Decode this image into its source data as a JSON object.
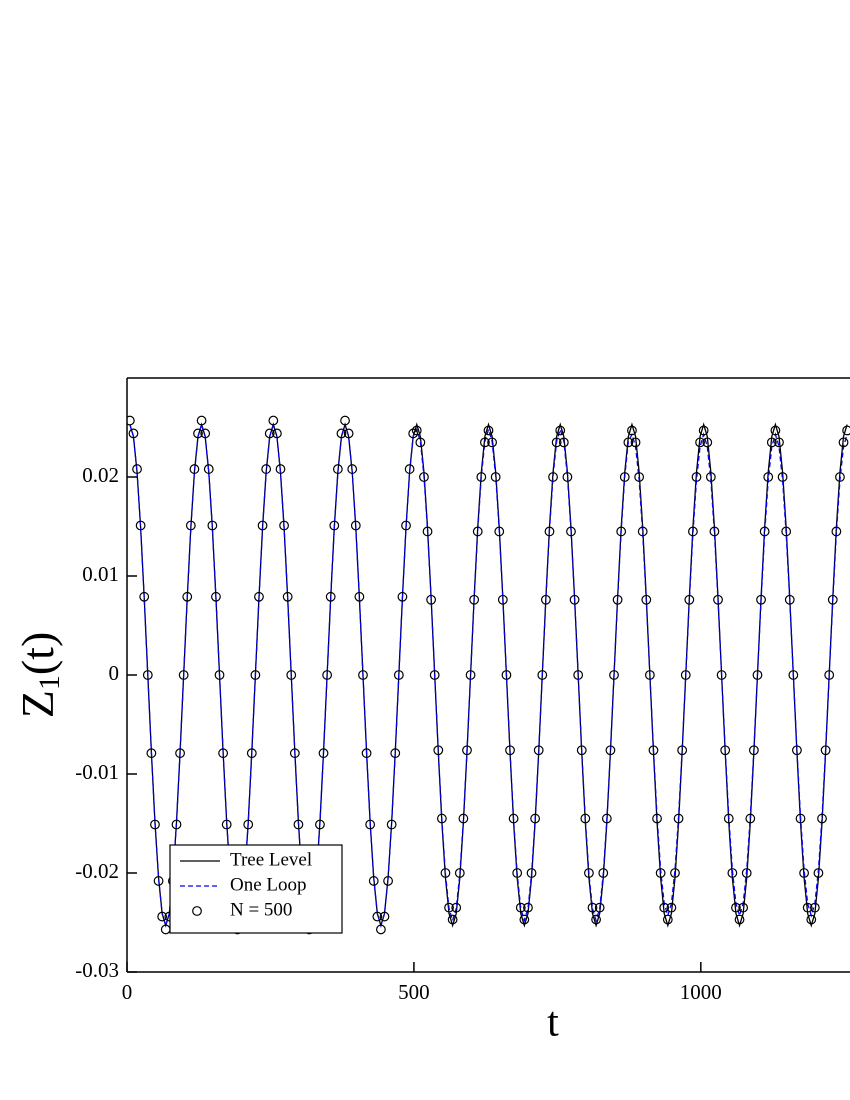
{
  "chart_data": {
    "type": "line",
    "xlabel": "t",
    "ylabel": [
      "Z",
      "1",
      "(t)"
    ],
    "xlim": [
      0,
      1260
    ],
    "ylim": [
      -0.03,
      0.03
    ],
    "xticks": [
      0,
      500,
      1000
    ],
    "yticks": [
      -0.03,
      -0.02,
      -0.01,
      0,
      0.01,
      0.02
    ],
    "legend": "lower left",
    "x": [
      5,
      11.25,
      17.5,
      23.75,
      30,
      36.25,
      42.5,
      48.75,
      55,
      61.25,
      67.5,
      73.75,
      80,
      86.25,
      92.5,
      98.75,
      105,
      111.25,
      117.5,
      123.75,
      130,
      136.25,
      142.5,
      148.75,
      155,
      161.25,
      167.5,
      173.75,
      180,
      186.25,
      192.5,
      198.75,
      205,
      211.25,
      217.5,
      223.75,
      230,
      236.25,
      242.5,
      248.75,
      255,
      261.25,
      267.5,
      273.75,
      280,
      286.25,
      292.5,
      298.75,
      305,
      311.25,
      317.5,
      323.75,
      330,
      336.25,
      342.5,
      348.75,
      355,
      361.25,
      367.5,
      373.75,
      380,
      386.25,
      392.5,
      398.75,
      405,
      411.25,
      417.5,
      423.75,
      430,
      436.25,
      442.5,
      448.75,
      455,
      461.25,
      467.5,
      473.75,
      480,
      486.25,
      492.5,
      498.75,
      505,
      511.25,
      517.5,
      523.75,
      530,
      536.25,
      542.5,
      548.75,
      555,
      561.25,
      567.5,
      573.75,
      580,
      586.25,
      592.5,
      598.75,
      605,
      611.25,
      617.5,
      623.75,
      630,
      636.25,
      642.5,
      648.75,
      655,
      661.25,
      667.5,
      673.75,
      680,
      686.25,
      692.5,
      698.75,
      705,
      711.25,
      717.5,
      723.75,
      730,
      736.25,
      742.5,
      748.75,
      755,
      761.25,
      767.5,
      773.75,
      780,
      786.25,
      792.5,
      798.75,
      805,
      811.25,
      817.5,
      823.75,
      830,
      836.25,
      842.5,
      848.75,
      855,
      861.25,
      867.5,
      873.75,
      880,
      886.25,
      892.5,
      898.75,
      905,
      911.25,
      917.5,
      923.75,
      930,
      936.25,
      942.5,
      948.75,
      955,
      961.25,
      967.5,
      973.75,
      980,
      986.25,
      992.5,
      998.75,
      1005,
      1011.25,
      1017.5,
      1023.75,
      1030,
      1036.25,
      1042.5,
      1048.75,
      1055,
      1061.25,
      1067.5,
      1073.75,
      1080,
      1086.25,
      1092.5,
      1098.75,
      1105,
      1111.25,
      1117.5,
      1123.75,
      1130,
      1136.25,
      1142.5,
      1148.75,
      1155,
      1161.25,
      1167.5,
      1173.75,
      1180,
      1186.25,
      1192.5,
      1198.75,
      1205,
      1211.25,
      1217.5,
      1223.75,
      1230,
      1236.25,
      1242.5,
      1248.75,
      1255
    ],
    "series": [
      {
        "name": "Tree Level",
        "color": "#000000",
        "mode": "line",
        "dashed": false,
        "values": [
          0.0253,
          0.0241,
          0.0205,
          0.0149,
          0.0078,
          0,
          -0.0078,
          -0.0149,
          -0.0205,
          -0.0241,
          -0.0253,
          -0.0241,
          -0.0205,
          -0.0149,
          -0.0078,
          0,
          0.0078,
          0.0149,
          0.0205,
          0.0241,
          0.0253,
          0.0241,
          0.0205,
          0.0149,
          0.0078,
          0,
          -0.0078,
          -0.0149,
          -0.0205,
          -0.0241,
          -0.0253,
          -0.0241,
          -0.0205,
          -0.0149,
          -0.0078,
          0,
          0.0078,
          0.0149,
          0.0205,
          0.0241,
          0.0253,
          0.0241,
          0.0205,
          0.0149,
          0.0078,
          0,
          -0.0078,
          -0.0149,
          -0.0205,
          -0.0241,
          -0.0253,
          -0.0241,
          -0.0205,
          -0.0149,
          -0.0078,
          0,
          0.0078,
          0.0149,
          0.0205,
          0.0241,
          0.0253,
          0.0241,
          0.0205,
          0.0149,
          0.0078,
          0,
          -0.0078,
          -0.0149,
          -0.0205,
          -0.0241,
          -0.0253,
          -0.0241,
          -0.0205,
          -0.0149,
          -0.0078,
          0,
          0.0078,
          0.0149,
          0.0205,
          0.0241,
          0.0253,
          0.0241,
          0.0205,
          0.0149,
          0.0078,
          0,
          -0.0078,
          -0.0149,
          -0.0205,
          -0.0241,
          -0.0253,
          -0.0241,
          -0.0205,
          -0.0149,
          -0.0078,
          0,
          0.0078,
          0.0149,
          0.0205,
          0.0241,
          0.0253,
          0.0241,
          0.0205,
          0.0149,
          0.0078,
          0,
          -0.0078,
          -0.0149,
          -0.0205,
          -0.0241,
          -0.0253,
          -0.0241,
          -0.0205,
          -0.0149,
          -0.0078,
          0,
          0.0078,
          0.0149,
          0.0205,
          0.0241,
          0.0253,
          0.0241,
          0.0205,
          0.0149,
          0.0078,
          0,
          -0.0078,
          -0.0149,
          -0.0205,
          -0.0241,
          -0.0253,
          -0.0241,
          -0.0205,
          -0.0149,
          -0.0078,
          0,
          0.0078,
          0.0149,
          0.0205,
          0.0241,
          0.0253,
          0.0241,
          0.0205,
          0.0149,
          0.0078,
          0,
          -0.0078,
          -0.0149,
          -0.0205,
          -0.0241,
          -0.0253,
          -0.0241,
          -0.0205,
          -0.0149,
          -0.0078,
          0,
          0.0078,
          0.0149,
          0.0205,
          0.0241,
          0.0253,
          0.0241,
          0.0205,
          0.0149,
          0.0078,
          0,
          -0.0078,
          -0.0149,
          -0.0205,
          -0.0241,
          -0.0253,
          -0.0241,
          -0.0205,
          -0.0149,
          -0.0078,
          0,
          0.0078,
          0.0149,
          0.0205,
          0.0241,
          0.0253,
          0.0241,
          0.0205,
          0.0149,
          0.0078,
          0,
          -0.0078,
          -0.0149,
          -0.0205,
          -0.0241,
          -0.0253,
          -0.0241,
          -0.0205,
          -0.0149,
          -0.0078,
          0,
          0.0078,
          0.0149,
          0.0205,
          0.0241,
          0.0253
        ]
      },
      {
        "name": "One Loop",
        "color": "#0000ff",
        "mode": "line",
        "dashed": true,
        "values": [
          0.0253,
          0.0241,
          0.0205,
          0.0149,
          0.0078,
          0,
          -0.0078,
          -0.0149,
          -0.0205,
          -0.0241,
          -0.0253,
          -0.0241,
          -0.0205,
          -0.0149,
          -0.0078,
          0,
          0.0078,
          0.0149,
          0.0205,
          0.0241,
          0.0253,
          0.0241,
          0.0205,
          0.0149,
          0.0078,
          0,
          -0.0078,
          -0.0149,
          -0.0205,
          -0.0241,
          -0.0253,
          -0.0241,
          -0.0205,
          -0.0149,
          -0.0078,
          0,
          0.0078,
          0.0149,
          0.0205,
          0.0241,
          0.0253,
          0.0241,
          0.0205,
          0.0149,
          0.0078,
          0,
          -0.0078,
          -0.0149,
          -0.0205,
          -0.0241,
          -0.0253,
          -0.0241,
          -0.0205,
          -0.0149,
          -0.0078,
          0,
          0.0078,
          0.0149,
          0.0205,
          0.0241,
          0.0253,
          0.0241,
          0.0205,
          0.0149,
          0.0078,
          0,
          -0.0078,
          -0.0149,
          -0.0205,
          -0.0241,
          -0.0253,
          -0.0241,
          -0.0205,
          -0.0149,
          -0.0078,
          0,
          0.0078,
          0.0149,
          0.0205,
          0.0241,
          0.0248,
          0.0236,
          0.0201,
          0.0146,
          0.0077,
          0,
          -0.0077,
          -0.0146,
          -0.0201,
          -0.0236,
          -0.0248,
          -0.0236,
          -0.0201,
          -0.0146,
          -0.0077,
          0,
          0.0077,
          0.0146,
          0.0201,
          0.0236,
          0.0248,
          0.0236,
          0.0201,
          0.0146,
          0.0077,
          0,
          -0.0077,
          -0.0146,
          -0.0201,
          -0.0236,
          -0.0248,
          -0.0236,
          -0.0201,
          -0.0146,
          -0.0077,
          0,
          0.0077,
          0.0146,
          0.0201,
          0.0236,
          0.0248,
          0.0236,
          0.0201,
          0.0146,
          0.0077,
          0,
          -0.0077,
          -0.0146,
          -0.0201,
          -0.0236,
          -0.0248,
          -0.0236,
          -0.0201,
          -0.0146,
          -0.0077,
          0,
          0.0077,
          0.0146,
          0.0201,
          0.0236,
          0.0243,
          0.0231,
          0.0197,
          0.0143,
          0.0075,
          0,
          -0.0075,
          -0.0143,
          -0.0197,
          -0.0231,
          -0.0243,
          -0.0231,
          -0.0197,
          -0.0143,
          -0.0075,
          0,
          0.0075,
          0.0143,
          0.0197,
          0.0231,
          0.0243,
          0.0231,
          0.0197,
          0.0143,
          0.0075,
          0,
          -0.0075,
          -0.0143,
          -0.0197,
          -0.0231,
          -0.0243,
          -0.0231,
          -0.0197,
          -0.0143,
          -0.0075,
          0,
          0.0075,
          0.0143,
          0.0197,
          0.0231,
          0.0243,
          0.0231,
          0.0197,
          0.0143,
          0.0075,
          0,
          -0.0075,
          -0.0143,
          -0.0197,
          -0.0231,
          -0.0243,
          -0.0231,
          -0.0197,
          -0.0143,
          -0.0075,
          0,
          0.0075,
          0.0143,
          0.0197,
          0.0231,
          0.0243
        ]
      },
      {
        "name": "N = 500",
        "color": "#000000",
        "mode": "markers",
        "dashed": false,
        "values": [
          0.0257,
          0.0244,
          0.0208,
          0.0151,
          0.0079,
          0,
          -0.0079,
          -0.0151,
          -0.0208,
          -0.0244,
          -0.0257,
          -0.0244,
          -0.0208,
          -0.0151,
          -0.0079,
          0,
          0.0079,
          0.0151,
          0.0208,
          0.0244,
          0.0257,
          0.0244,
          0.0208,
          0.0151,
          0.0079,
          0,
          -0.0079,
          -0.0151,
          -0.0208,
          -0.0244,
          -0.0257,
          -0.0244,
          -0.0208,
          -0.0151,
          -0.0079,
          0,
          0.0079,
          0.0151,
          0.0208,
          0.0244,
          0.0257,
          0.0244,
          0.0208,
          0.0151,
          0.0079,
          0,
          -0.0079,
          -0.0151,
          -0.0208,
          -0.0244,
          -0.0257,
          -0.0244,
          -0.0208,
          -0.0151,
          -0.0079,
          0,
          0.0079,
          0.0151,
          0.0208,
          0.0244,
          0.0257,
          0.0244,
          0.0208,
          0.0151,
          0.0079,
          0,
          -0.0079,
          -0.0151,
          -0.0208,
          -0.0244,
          -0.0257,
          -0.0244,
          -0.0208,
          -0.0151,
          -0.0079,
          0,
          0.0079,
          0.0151,
          0.0208,
          0.0244,
          0.0247,
          0.0235,
          0.02,
          0.0145,
          0.0076,
          0,
          -0.0076,
          -0.0145,
          -0.02,
          -0.0235,
          -0.0247,
          -0.0235,
          -0.02,
          -0.0145,
          -0.0076,
          0,
          0.0076,
          0.0145,
          0.02,
          0.0235,
          0.0247,
          0.0235,
          0.02,
          0.0145,
          0.0076,
          0,
          -0.0076,
          -0.0145,
          -0.02,
          -0.0235,
          -0.0247,
          -0.0235,
          -0.02,
          -0.0145,
          -0.0076,
          0,
          0.0076,
          0.0145,
          0.02,
          0.0235,
          0.0247,
          0.0235,
          0.02,
          0.0145,
          0.0076,
          0,
          -0.0076,
          -0.0145,
          -0.02,
          -0.0235,
          -0.0247,
          -0.0235,
          -0.02,
          -0.0145,
          -0.0076,
          0,
          0.0076,
          0.0145,
          0.02,
          0.0235,
          0.0247,
          0.0235,
          0.02,
          0.0145,
          0.0076,
          0,
          -0.0076,
          -0.0145,
          -0.02,
          -0.0235,
          -0.0247,
          -0.0235,
          -0.02,
          -0.0145,
          -0.0076,
          0,
          0.0076,
          0.0145,
          0.02,
          0.0235,
          0.0247,
          0.0235,
          0.02,
          0.0145,
          0.0076,
          0,
          -0.0076,
          -0.0145,
          -0.02,
          -0.0235,
          -0.0247,
          -0.0235,
          -0.02,
          -0.0145,
          -0.0076,
          0,
          0.0076,
          0.0145,
          0.02,
          0.0235,
          0.0247,
          0.0235,
          0.02,
          0.0145,
          0.0076,
          0,
          -0.0076,
          -0.0145,
          -0.02,
          -0.0235,
          -0.0247,
          -0.0235,
          -0.02,
          -0.0145,
          -0.0076,
          0,
          0.0076,
          0.0145,
          0.02,
          0.0235,
          0.0247
        ]
      }
    ]
  }
}
